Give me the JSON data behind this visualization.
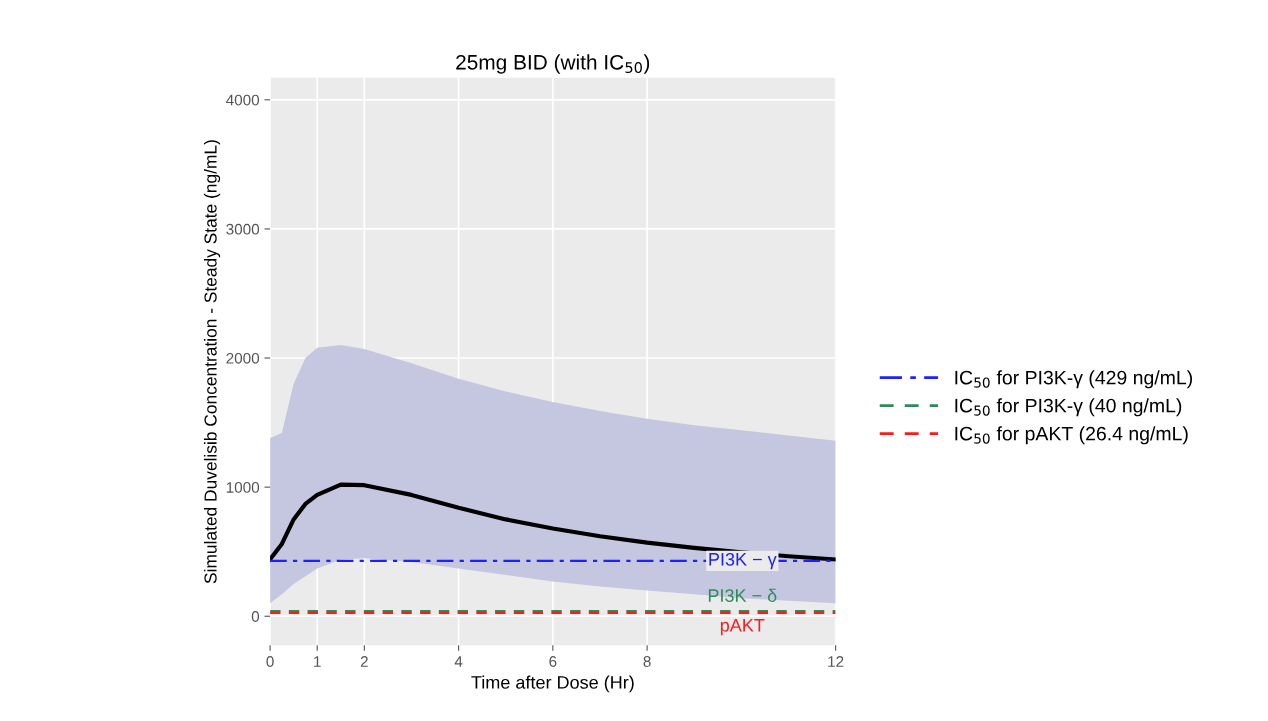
{
  "chart_data": {
    "type": "line",
    "title": "25mg BID (with IC$_{50}$)",
    "xlabel": "Time after Dose (Hr)",
    "ylabel": "Simulated Duvelisib Concentration - Steady State (ng/mL)",
    "xlim": [
      0,
      12
    ],
    "xticks": [
      0,
      1,
      2,
      4,
      6,
      8,
      12
    ],
    "ylim": [
      -225,
      4170
    ],
    "yticks": [
      0,
      1000,
      2000,
      3000,
      4000
    ],
    "grid": true,
    "legend": "right",
    "series": [
      {
        "color": "#000000",
        "x": [
          0,
          0.25,
          0.5,
          0.75,
          1,
          1.5,
          2,
          3,
          4,
          5,
          6,
          7,
          8,
          9,
          10,
          11,
          12
        ],
        "lower": [
          100,
          170,
          250,
          310,
          370,
          440,
          450,
          420,
          370,
          320,
          270,
          230,
          200,
          170,
          140,
          120,
          100
        ],
        "upper": [
          1380,
          1420,
          1800,
          2000,
          2080,
          2100,
          2070,
          1960,
          1840,
          1740,
          1660,
          1590,
          1530,
          1480,
          1440,
          1400,
          1360
        ],
        "values": [
          440,
          560,
          750,
          870,
          940,
          1020,
          1015,
          940,
          840,
          750,
          680,
          620,
          570,
          530,
          495,
          465,
          440
        ]
      },
      {
        "name": "IC$_{50}$ for PI3K-γ (429 ng/mL)",
        "color": "#1f1fff",
        "line_style": "dashdot",
        "x": [
          0,
          12
        ],
        "values": [
          429,
          429
        ]
      },
      {
        "name": "IC$_{50}$ for PI3K-γ (40 ng/mL)",
        "color": "#2e8b57",
        "line_style": "dashed",
        "x": [
          0,
          12
        ],
        "values": [
          40,
          40
        ]
      },
      {
        "name": "IC$_{50}$ for pAKT (26.4 ng/mL)",
        "color": "#ff1a1a",
        "line_style": "dashed",
        "x": [
          0,
          12
        ],
        "values": [
          26.4,
          26.4
        ]
      }
    ],
    "annotations": [
      "PI3K − γ",
      "PI3K − δ",
      "pAKT"
    ]
  }
}
